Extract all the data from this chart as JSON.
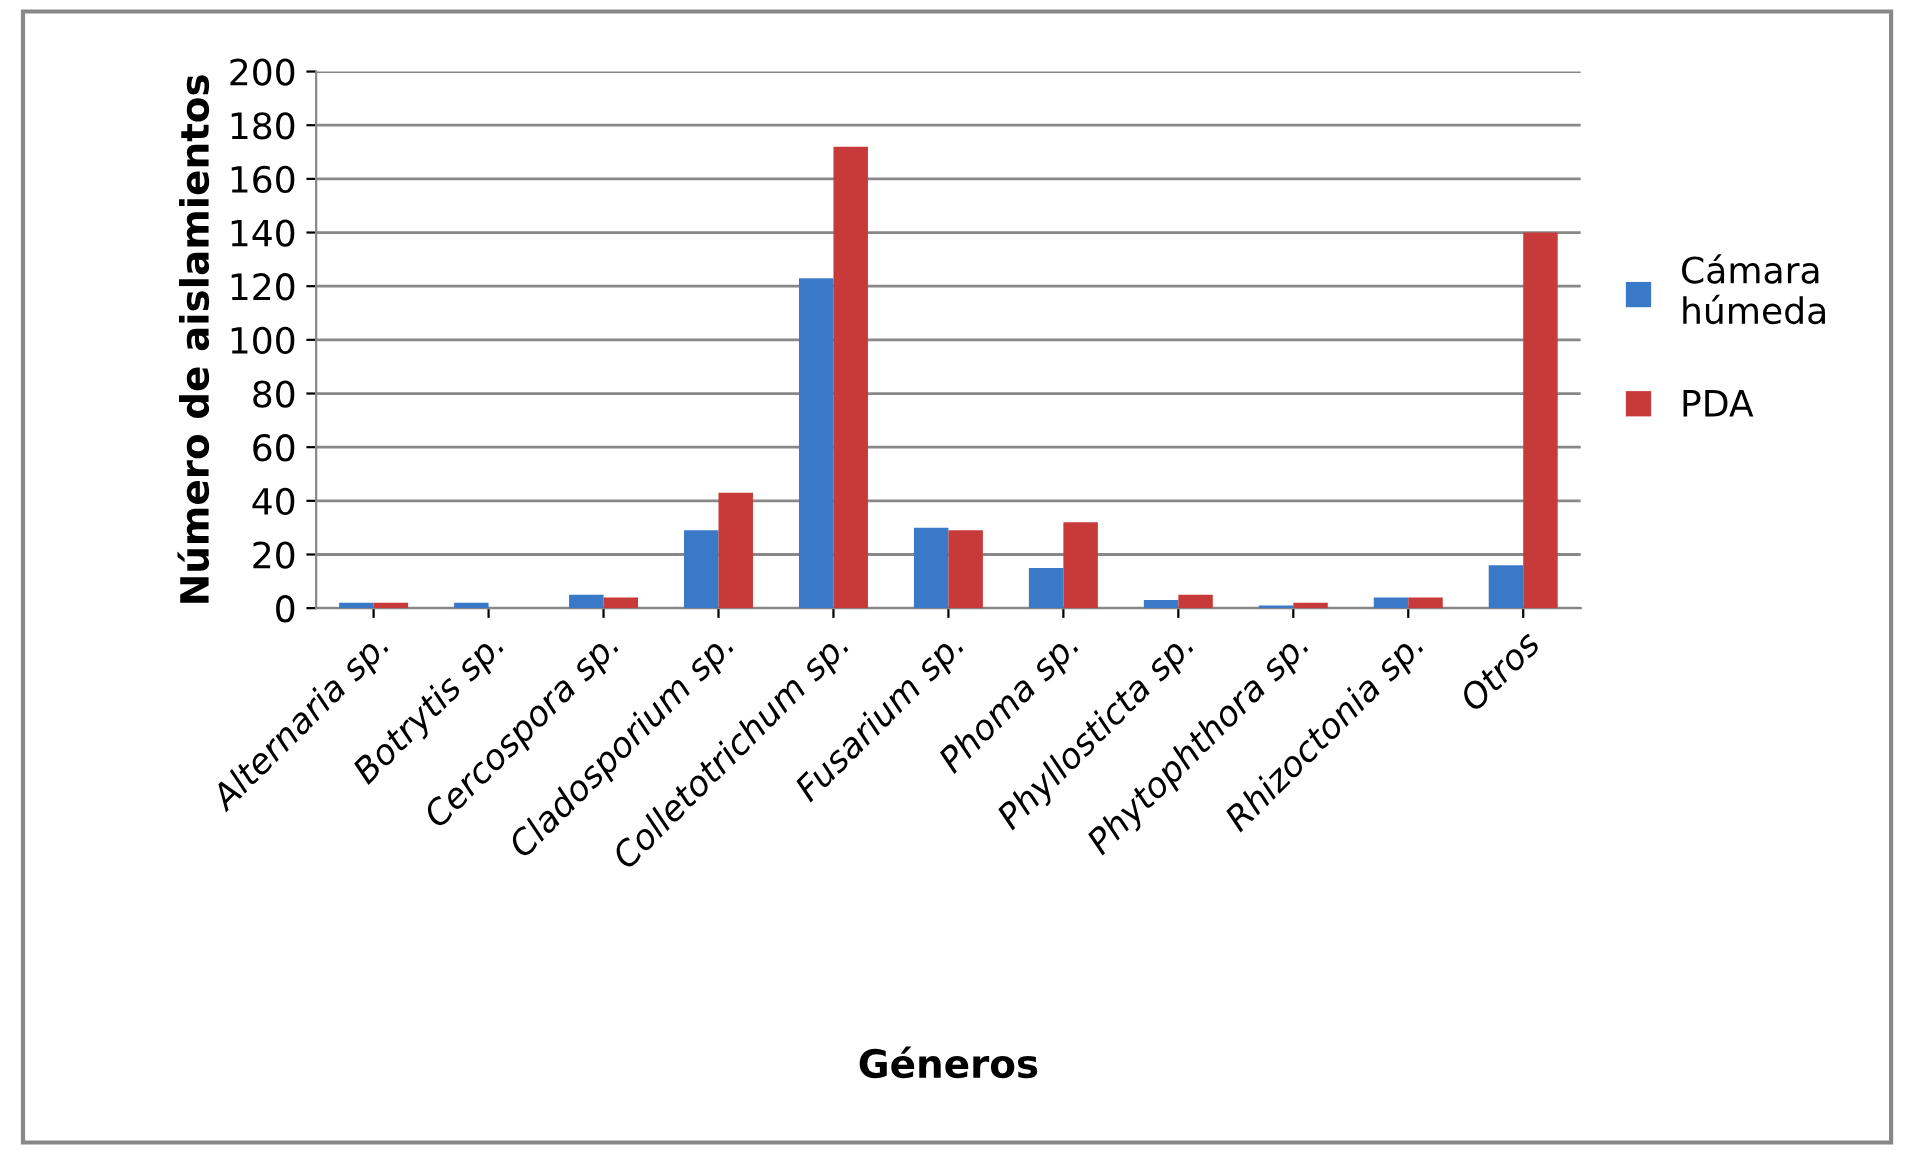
{
  "chart_data": {
    "type": "bar",
    "xlabel": "Géneros",
    "ylabel": "Número de aislamientos",
    "categories": [
      "Alternaria sp.",
      "Botrytis sp.",
      "Cercospora sp.",
      "Cladosporium sp.",
      "Colletotrichum sp.",
      "Fusarium sp.",
      "Phoma sp.",
      "Phyllosticta sp.",
      "Phytophthora sp.",
      "Rhizoctonia sp.",
      "Otros"
    ],
    "series": [
      {
        "name": "Cámara húmeda",
        "color": "#3a78c8",
        "values": [
          2,
          2,
          5,
          29,
          123,
          30,
          15,
          3,
          1,
          4,
          16
        ]
      },
      {
        "name": "PDA",
        "color": "#c83a3a",
        "values": [
          2,
          0,
          4,
          43,
          172,
          29,
          32,
          5,
          2,
          4,
          140
        ]
      }
    ],
    "ylim": [
      0,
      200
    ],
    "yticks": [
      0,
      20,
      40,
      60,
      80,
      100,
      120,
      140,
      160,
      180,
      200
    ],
    "grid": "y",
    "legend": "right"
  }
}
